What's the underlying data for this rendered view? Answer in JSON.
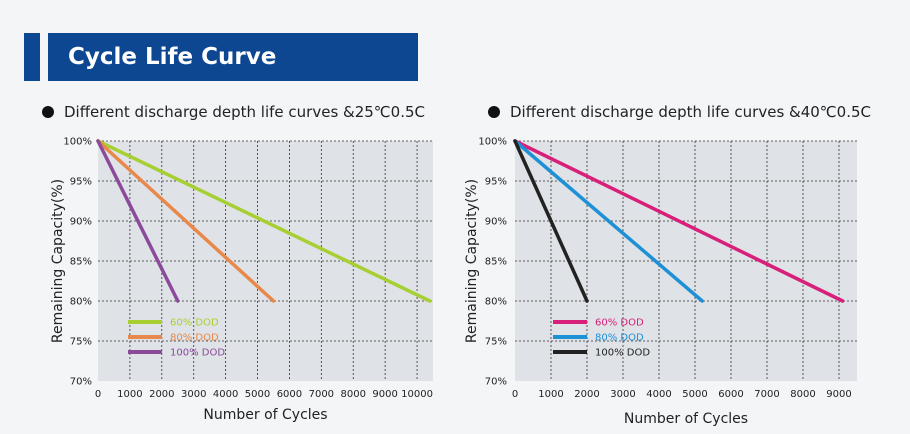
{
  "header": {
    "title": "Cycle Life Curve"
  },
  "colors": {
    "header_bg": "#0d4691",
    "plot_bg": "#dfe2e6"
  },
  "chart_data": [
    {
      "type": "line",
      "title": "Different discharge depth life curves &25℃0.5C",
      "xlabel": "Number of Cycles",
      "ylabel": "Remaining Capacity(%)",
      "xlim": [
        0,
        10500
      ],
      "ylim": [
        70,
        100
      ],
      "x_ticks": [
        0,
        1000,
        2000,
        3000,
        4000,
        5000,
        6000,
        7000,
        8000,
        9000,
        10000
      ],
      "x_tick_labels": [
        "0",
        "1000",
        "2000",
        "3000",
        "4000",
        "5000",
        "6000",
        "7000",
        "8000",
        "9000",
        "10000"
      ],
      "y_ticks": [
        70,
        75,
        80,
        85,
        90,
        95,
        100
      ],
      "y_tick_labels": [
        "70%",
        "75%",
        "80%",
        "85%",
        "90%",
        "95%",
        "100%"
      ],
      "grid": true,
      "legend_position": "bottom-left",
      "series": [
        {
          "name": "60% DOD",
          "color": "#a7cf32",
          "x": [
            0,
            10400
          ],
          "y": [
            100,
            80
          ]
        },
        {
          "name": "80% DOD",
          "color": "#e8884a",
          "x": [
            0,
            5500
          ],
          "y": [
            100,
            80
          ]
        },
        {
          "name": "100% DOD",
          "color": "#8b4a9a",
          "x": [
            0,
            2500
          ],
          "y": [
            100,
            80
          ]
        }
      ]
    },
    {
      "type": "line",
      "title": "Different discharge depth life curves &40℃0.5C",
      "xlabel": "Number of Cycles",
      "ylabel": "Remaining Capacity(%)",
      "xlim": [
        0,
        9500
      ],
      "ylim": [
        70,
        100
      ],
      "x_ticks": [
        0,
        1000,
        2000,
        3000,
        4000,
        5000,
        6000,
        7000,
        8000,
        9000
      ],
      "x_tick_labels": [
        "0",
        "1000",
        "2000",
        "3000",
        "4000",
        "5000",
        "6000",
        "7000",
        "8000",
        "9000"
      ],
      "y_ticks": [
        70,
        75,
        80,
        85,
        90,
        95,
        100
      ],
      "y_tick_labels": [
        "70%",
        "75%",
        "80%",
        "85%",
        "90%",
        "95%",
        "100%"
      ],
      "grid": true,
      "legend_position": "bottom-left",
      "series": [
        {
          "name": "60% DOD",
          "color": "#d81f7a",
          "x": [
            0,
            9100
          ],
          "y": [
            100,
            80
          ]
        },
        {
          "name": "80% DOD",
          "color": "#1e90d6",
          "x": [
            0,
            5200
          ],
          "y": [
            100,
            80
          ]
        },
        {
          "name": "100% DOD",
          "color": "#222222",
          "x": [
            0,
            2000
          ],
          "y": [
            100,
            80
          ]
        }
      ]
    }
  ]
}
